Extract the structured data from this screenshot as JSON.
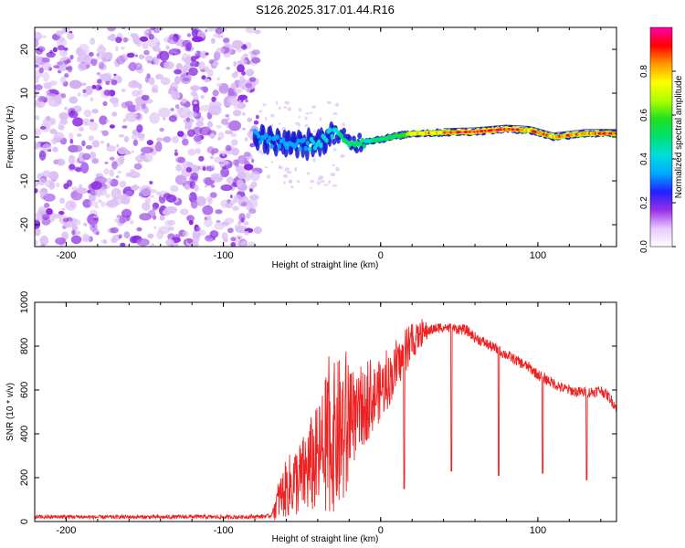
{
  "title": "S126.2025.317.01.44.R16",
  "chart_data": [
    {
      "type": "heatmap",
      "name": "spectrogram",
      "xlabel": "Height of straight line (km)",
      "ylabel": "Frequency (Hz)",
      "xlim": [
        -220,
        150
      ],
      "ylim": [
        -25,
        25
      ],
      "xticks": [
        -200,
        -100,
        0,
        100
      ],
      "xtick_labels": [
        "-200",
        "-100",
        "0",
        "100"
      ],
      "yticks": [
        -20,
        -10,
        0,
        10,
        20
      ],
      "ytick_labels": [
        "-20",
        "-10",
        "0",
        "10",
        "20"
      ],
      "noise_region_x": [
        -220,
        -78
      ],
      "signal_onset_km": -78,
      "carrier_line": [
        {
          "x": -80,
          "y": 0.5,
          "amp": 0.25
        },
        {
          "x": -70,
          "y": -1.0,
          "amp": 0.3
        },
        {
          "x": -60,
          "y": -1.5,
          "amp": 0.3
        },
        {
          "x": -50,
          "y": -1.8,
          "amp": 0.3
        },
        {
          "x": -40,
          "y": -1.5,
          "amp": 0.35
        },
        {
          "x": -30,
          "y": 1.0,
          "amp": 0.45
        },
        {
          "x": -20,
          "y": -1.3,
          "amp": 0.5
        },
        {
          "x": -10,
          "y": -1.0,
          "amp": 0.55
        },
        {
          "x": 0,
          "y": -0.5,
          "amp": 0.6
        },
        {
          "x": 10,
          "y": 0.2,
          "amp": 0.65
        },
        {
          "x": 20,
          "y": 0.8,
          "amp": 0.8
        },
        {
          "x": 40,
          "y": 1.0,
          "amp": 0.9
        },
        {
          "x": 60,
          "y": 1.2,
          "amp": 0.95
        },
        {
          "x": 80,
          "y": 1.8,
          "amp": 0.95
        },
        {
          "x": 95,
          "y": 1.5,
          "amp": 0.9
        },
        {
          "x": 110,
          "y": 0.0,
          "amp": 0.85
        },
        {
          "x": 130,
          "y": 0.8,
          "amp": 0.9
        },
        {
          "x": 150,
          "y": 0.8,
          "amp": 0.9
        }
      ]
    },
    {
      "type": "line",
      "name": "snr",
      "xlabel": "Height of straight line (km)",
      "ylabel": "SNR (10 * v/v)",
      "xlim": [
        -220,
        150
      ],
      "ylim": [
        0,
        1000
      ],
      "xticks": [
        -200,
        -100,
        0,
        100
      ],
      "xtick_labels": [
        "-200",
        "-100",
        "0",
        "100"
      ],
      "yticks": [
        0,
        200,
        400,
        600,
        800,
        1000
      ],
      "ytick_labels": [
        "0",
        "200",
        "400",
        "600",
        "800",
        "1000"
      ],
      "series": [
        {
          "name": "SNR",
          "color": "#ee2222",
          "x": [
            -220,
            -200,
            -180,
            -160,
            -140,
            -120,
            -100,
            -80,
            -70,
            -65,
            -60,
            -55,
            -50,
            -45,
            -40,
            -35,
            -30,
            -25,
            -20,
            -15,
            -10,
            -5,
            0,
            5,
            10,
            15,
            20,
            25,
            30,
            35,
            40,
            45,
            50,
            55,
            60,
            65,
            70,
            75,
            80,
            85,
            90,
            95,
            100,
            105,
            110,
            115,
            120,
            125,
            130,
            135,
            140,
            145,
            150
          ],
          "y": [
            20,
            22,
            20,
            21,
            20,
            22,
            20,
            22,
            25,
            100,
            150,
            180,
            200,
            250,
            280,
            350,
            380,
            400,
            430,
            470,
            520,
            560,
            600,
            640,
            700,
            760,
            810,
            850,
            870,
            880,
            890,
            880,
            880,
            870,
            840,
            820,
            800,
            780,
            760,
            740,
            720,
            700,
            670,
            650,
            630,
            610,
            600,
            590,
            590,
            590,
            600,
            570,
            520
          ],
          "dips": [
            {
              "x": 15,
              "y": 150
            },
            {
              "x": 45,
              "y": 230
            },
            {
              "x": 75,
              "y": 210
            },
            {
              "x": 103,
              "y": 220
            },
            {
              "x": 131,
              "y": 190
            }
          ]
        }
      ]
    }
  ],
  "colorbar": {
    "label": "Normalized spectral amplitude",
    "min": 0,
    "max": 1,
    "ticks": [
      0.0,
      0.2,
      0.4,
      0.6,
      0.8
    ],
    "tick_labels": [
      "0.0",
      "0.2",
      "0.4",
      "0.6",
      "0.8"
    ],
    "colors": [
      "#ffffff",
      "#e6c8ff",
      "#9a2ee6",
      "#2020ff",
      "#00aaff",
      "#00dddd",
      "#00e070",
      "#20e020",
      "#b0ff00",
      "#ffff00",
      "#ff9900",
      "#ff0000",
      "#ff00aa"
    ]
  },
  "colors": {
    "snr_line": "#ee2222",
    "noise_purple": "#8a2be2"
  }
}
